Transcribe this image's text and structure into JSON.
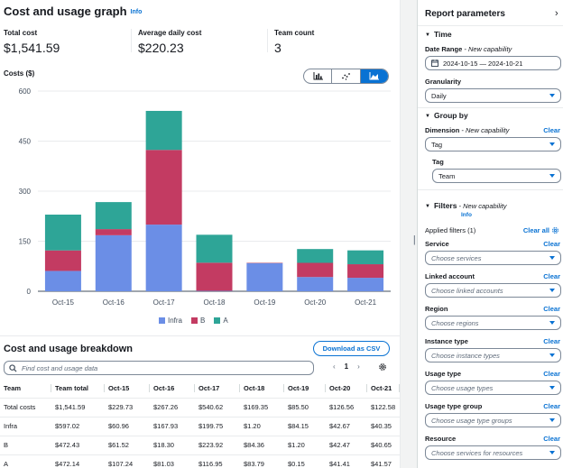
{
  "graph": {
    "title": "Cost and usage graph",
    "info": "Info",
    "stats": [
      {
        "label": "Total cost",
        "value": "$1,541.59"
      },
      {
        "label": "Average daily cost",
        "value": "$220.23"
      },
      {
        "label": "Team count",
        "value": "3"
      }
    ],
    "chart_label": "Costs ($)",
    "chart_type_icons": [
      "bar-chart-icon",
      "line-chart-icon",
      "stacked-chart-icon"
    ],
    "legend": [
      {
        "name": "Infra",
        "color": "#6b8ee6"
      },
      {
        "name": "B",
        "color": "#c33b62"
      },
      {
        "name": "A",
        "color": "#2ea597"
      }
    ]
  },
  "chart_data": {
    "type": "bar",
    "stacked": true,
    "categories": [
      "Oct-15",
      "Oct-16",
      "Oct-17",
      "Oct-18",
      "Oct-19",
      "Oct-20",
      "Oct-21"
    ],
    "series": [
      {
        "name": "Infra",
        "color": "#6b8ee6",
        "values": [
          60.96,
          167.93,
          199.75,
          1.2,
          84.15,
          42.67,
          40.35
        ]
      },
      {
        "name": "B",
        "color": "#c33b62",
        "values": [
          61.52,
          18.3,
          223.92,
          84.36,
          1.2,
          42.47,
          40.65
        ]
      },
      {
        "name": "A",
        "color": "#2ea597",
        "values": [
          107.24,
          81.03,
          116.95,
          83.79,
          0.15,
          41.41,
          41.57
        ]
      }
    ],
    "ylim": [
      0,
      600
    ],
    "yticks": [
      "0",
      "150",
      "300",
      "450",
      "600"
    ],
    "grid": true,
    "legend_position": "bottom"
  },
  "breakdown": {
    "title": "Cost and usage breakdown",
    "download_label": "Download as CSV",
    "search_placeholder": "Find cost and usage data",
    "page": "1",
    "columns": [
      "Team",
      "Team total",
      "Oct-15",
      "Oct-16",
      "Oct-17",
      "Oct-18",
      "Oct-19",
      "Oct-20",
      "Oct-21"
    ],
    "rows": [
      [
        "Total costs",
        "$1,541.59",
        "$229.73",
        "$267.26",
        "$540.62",
        "$169.35",
        "$85.50",
        "$126.56",
        "$122.58"
      ],
      [
        "Infra",
        "$597.02",
        "$60.96",
        "$167.93",
        "$199.75",
        "$1.20",
        "$84.15",
        "$42.67",
        "$40.35"
      ],
      [
        "B",
        "$472.43",
        "$61.52",
        "$18.30",
        "$223.92",
        "$84.36",
        "$1.20",
        "$42.47",
        "$40.65"
      ],
      [
        "A",
        "$472.14",
        "$107.24",
        "$81.03",
        "$116.95",
        "$83.79",
        "$0.15",
        "$41.41",
        "$41.57"
      ]
    ]
  },
  "panel": {
    "title": "Report parameters",
    "time_section": "Time",
    "date_range_label": "Date Range",
    "new_capability": "New capability",
    "date_range_value": "2024-10-15 — 2024-10-21",
    "granularity_label": "Granularity",
    "granularity_value": "Daily",
    "group_by_section": "Group by",
    "dimension_label": "Dimension",
    "dimension_value": "Tag",
    "tag_label": "Tag",
    "tag_value": "Team",
    "filters_section": "Filters",
    "info": "Info",
    "applied_filters": "Applied filters (1)",
    "clear_all": "Clear all",
    "clear": "Clear",
    "filters": [
      {
        "label": "Service",
        "placeholder": "Choose services"
      },
      {
        "label": "Linked account",
        "placeholder": "Choose linked accounts"
      },
      {
        "label": "Region",
        "placeholder": "Choose regions"
      },
      {
        "label": "Instance type",
        "placeholder": "Choose instance types"
      },
      {
        "label": "Usage type",
        "placeholder": "Choose usage types"
      },
      {
        "label": "Usage type group",
        "placeholder": "Choose usage type groups"
      },
      {
        "label": "Resource",
        "placeholder": "Choose services for resources"
      }
    ]
  }
}
